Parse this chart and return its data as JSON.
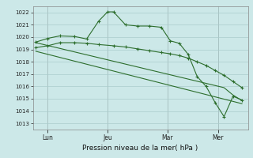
{
  "bg_color": "#cce8e8",
  "grid_color": "#aacccc",
  "line_color": "#2d6e2d",
  "title": "Pression niveau de la mer( hPa )",
  "ylim": [
    1012.5,
    1022.5
  ],
  "yticks": [
    1013,
    1014,
    1015,
    1016,
    1017,
    1018,
    1019,
    1020,
    1021,
    1022
  ],
  "xtick_labels": [
    "Lun",
    "Jeu",
    "Mar",
    "Mer"
  ],
  "xtick_positions": [
    55,
    155,
    255,
    340
  ],
  "xlim": [
    30,
    390
  ],
  "series1_x": [
    35,
    55,
    75,
    100,
    120,
    140,
    155,
    165,
    185,
    205,
    225,
    245,
    260,
    275,
    290,
    305,
    320,
    335,
    350,
    365,
    380
  ],
  "series1_y": [
    1019.6,
    1019.9,
    1020.1,
    1020.05,
    1019.85,
    1021.3,
    1022.05,
    1022.05,
    1021.0,
    1020.9,
    1020.9,
    1020.8,
    1019.7,
    1019.5,
    1018.6,
    1016.8,
    1016.0,
    1014.7,
    1013.55,
    1015.2,
    1014.9
  ],
  "series2_x": [
    35,
    55,
    75,
    100,
    120,
    140,
    165,
    185,
    205,
    225,
    245,
    260,
    275,
    290,
    305,
    320,
    335,
    350,
    365,
    380
  ],
  "series2_y": [
    1019.15,
    1019.3,
    1019.55,
    1019.55,
    1019.5,
    1019.4,
    1019.3,
    1019.2,
    1019.05,
    1018.9,
    1018.75,
    1018.65,
    1018.5,
    1018.3,
    1018.0,
    1017.7,
    1017.3,
    1016.9,
    1016.4,
    1015.9
  ],
  "series3_x": [
    35,
    350,
    365,
    380
  ],
  "series3_y": [
    1019.55,
    1015.9,
    1015.3,
    1014.85
  ],
  "series4_x": [
    35,
    380
  ],
  "series4_y": [
    1018.85,
    1014.6
  ],
  "vline_positions": [
    55,
    155,
    255,
    340
  ]
}
